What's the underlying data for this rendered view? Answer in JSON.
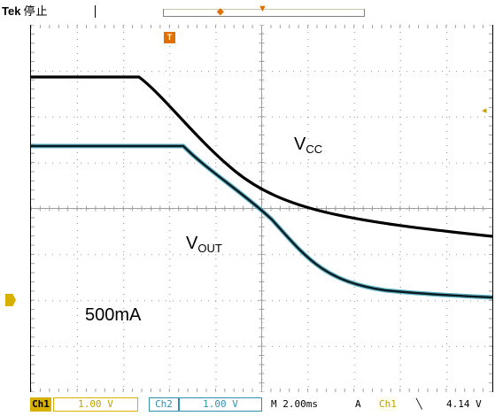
{
  "header": {
    "brand": "Tek",
    "state": "停止",
    "trigger_pos_marker": "◆",
    "trigger_arrow": "▼"
  },
  "markers": {
    "t_marker": "T",
    "right_marker": "◂"
  },
  "labels": {
    "vcc_main": "V",
    "vcc_sub": "CC",
    "vout_main": "V",
    "vout_sub": "OUT",
    "load": "500mA"
  },
  "footer": {
    "ch1_tag": "Ch1",
    "ch1_scale": "1.00 V",
    "ch2_tag": "Ch2",
    "ch2_scale": "1.00 V",
    "timebase": "M 2.00ms",
    "acq_mode": "A",
    "trigger_source": "Ch1",
    "trigger_slope": "╲",
    "trigger_level": "4.14 V"
  },
  "colors": {
    "trace_vcc": "#000000",
    "trace_vout": "#0a1a20",
    "trace_vout_halo": "#3aa0b8",
    "grid_dots": "#909090",
    "ch1_color": "#d8b000",
    "ch2_color": "#3090b0",
    "trigger_color": "#e07000"
  }
}
